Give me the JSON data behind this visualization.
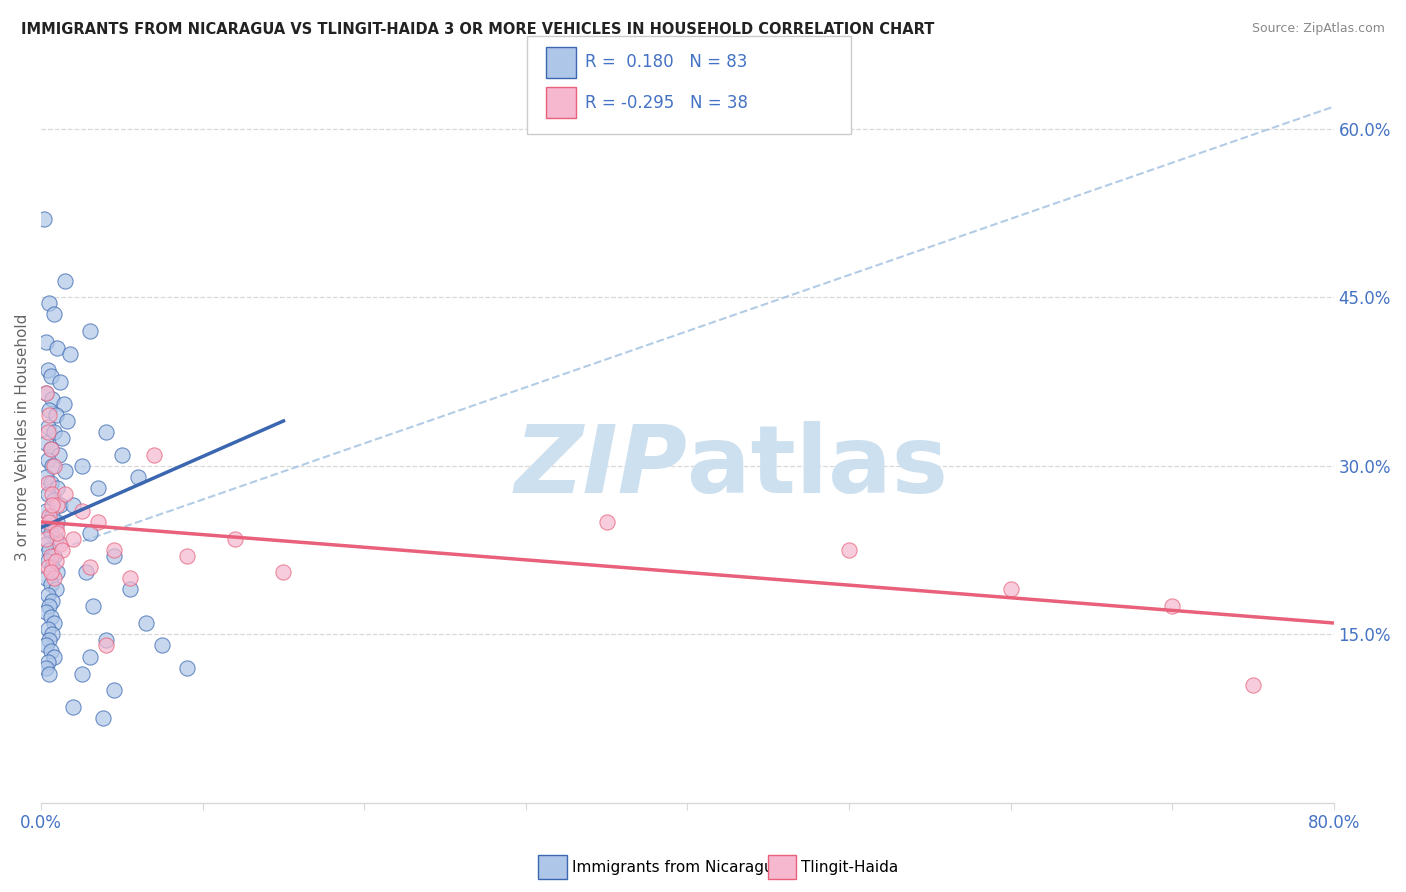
{
  "title": "IMMIGRANTS FROM NICARAGUA VS TLINGIT-HAIDA 3 OR MORE VEHICLES IN HOUSEHOLD CORRELATION CHART",
  "source": "Source: ZipAtlas.com",
  "ylabel": "3 or more Vehicles in Household",
  "legend1_label": "Immigrants from Nicaragua",
  "legend2_label": "Tlingit-Haida",
  "r1": 0.18,
  "n1": 83,
  "r2": -0.295,
  "n2": 38,
  "scatter_blue": [
    [
      0.2,
      52.0
    ],
    [
      1.5,
      46.5
    ],
    [
      3.0,
      42.0
    ],
    [
      0.5,
      44.5
    ],
    [
      0.8,
      43.5
    ],
    [
      0.3,
      41.0
    ],
    [
      1.0,
      40.5
    ],
    [
      1.8,
      40.0
    ],
    [
      0.4,
      38.5
    ],
    [
      0.6,
      38.0
    ],
    [
      1.2,
      37.5
    ],
    [
      0.3,
      36.5
    ],
    [
      0.7,
      36.0
    ],
    [
      1.4,
      35.5
    ],
    [
      0.5,
      35.0
    ],
    [
      0.9,
      34.5
    ],
    [
      1.6,
      34.0
    ],
    [
      0.4,
      33.5
    ],
    [
      0.8,
      33.0
    ],
    [
      1.3,
      32.5
    ],
    [
      0.3,
      32.0
    ],
    [
      0.6,
      31.5
    ],
    [
      1.1,
      31.0
    ],
    [
      0.4,
      30.5
    ],
    [
      0.7,
      30.0
    ],
    [
      1.5,
      29.5
    ],
    [
      0.3,
      29.0
    ],
    [
      0.6,
      28.5
    ],
    [
      1.0,
      28.0
    ],
    [
      0.4,
      27.5
    ],
    [
      0.8,
      27.0
    ],
    [
      1.2,
      26.5
    ],
    [
      0.3,
      26.0
    ],
    [
      0.7,
      25.5
    ],
    [
      1.0,
      25.0
    ],
    [
      0.4,
      24.5
    ],
    [
      0.6,
      24.0
    ],
    [
      0.9,
      23.5
    ],
    [
      0.3,
      23.0
    ],
    [
      0.5,
      22.5
    ],
    [
      0.8,
      22.0
    ],
    [
      0.4,
      21.5
    ],
    [
      0.7,
      21.0
    ],
    [
      1.0,
      20.5
    ],
    [
      0.3,
      20.0
    ],
    [
      0.6,
      19.5
    ],
    [
      0.9,
      19.0
    ],
    [
      0.4,
      18.5
    ],
    [
      0.7,
      18.0
    ],
    [
      0.5,
      17.5
    ],
    [
      0.3,
      17.0
    ],
    [
      0.6,
      16.5
    ],
    [
      0.8,
      16.0
    ],
    [
      0.4,
      15.5
    ],
    [
      0.7,
      15.0
    ],
    [
      0.5,
      14.5
    ],
    [
      0.3,
      14.0
    ],
    [
      0.6,
      13.5
    ],
    [
      0.8,
      13.0
    ],
    [
      0.4,
      12.5
    ],
    [
      0.3,
      12.0
    ],
    [
      0.5,
      11.5
    ],
    [
      2.5,
      30.0
    ],
    [
      3.5,
      28.0
    ],
    [
      2.0,
      26.5
    ],
    [
      4.0,
      33.0
    ],
    [
      5.0,
      31.0
    ],
    [
      6.0,
      29.0
    ],
    [
      3.0,
      24.0
    ],
    [
      4.5,
      22.0
    ],
    [
      2.8,
      20.5
    ],
    [
      5.5,
      19.0
    ],
    [
      3.2,
      17.5
    ],
    [
      6.5,
      16.0
    ],
    [
      4.0,
      14.5
    ],
    [
      3.0,
      13.0
    ],
    [
      2.5,
      11.5
    ],
    [
      4.5,
      10.0
    ],
    [
      2.0,
      8.5
    ],
    [
      3.8,
      7.5
    ],
    [
      7.5,
      14.0
    ],
    [
      9.0,
      12.0
    ]
  ],
  "scatter_pink": [
    [
      0.3,
      36.5
    ],
    [
      0.5,
      34.5
    ],
    [
      0.4,
      33.0
    ],
    [
      0.6,
      31.5
    ],
    [
      0.8,
      30.0
    ],
    [
      0.4,
      28.5
    ],
    [
      0.7,
      27.5
    ],
    [
      1.0,
      26.5
    ],
    [
      0.5,
      25.5
    ],
    [
      0.9,
      24.5
    ],
    [
      0.3,
      23.5
    ],
    [
      1.2,
      23.0
    ],
    [
      0.6,
      22.0
    ],
    [
      0.4,
      21.0
    ],
    [
      0.8,
      20.0
    ],
    [
      1.5,
      27.5
    ],
    [
      0.7,
      26.5
    ],
    [
      0.5,
      25.0
    ],
    [
      1.0,
      24.0
    ],
    [
      1.3,
      22.5
    ],
    [
      0.9,
      21.5
    ],
    [
      0.6,
      20.5
    ],
    [
      2.5,
      26.0
    ],
    [
      3.5,
      25.0
    ],
    [
      2.0,
      23.5
    ],
    [
      4.5,
      22.5
    ],
    [
      3.0,
      21.0
    ],
    [
      5.5,
      20.0
    ],
    [
      7.0,
      31.0
    ],
    [
      9.0,
      22.0
    ],
    [
      12.0,
      23.5
    ],
    [
      15.0,
      20.5
    ],
    [
      35.0,
      25.0
    ],
    [
      50.0,
      22.5
    ],
    [
      60.0,
      19.0
    ],
    [
      70.0,
      17.5
    ],
    [
      4.0,
      14.0
    ],
    [
      75.0,
      10.5
    ]
  ],
  "xlim": [
    0.0,
    80.0
  ],
  "ylim": [
    0.0,
    65.0
  ],
  "xtick_positions": [
    0,
    10,
    20,
    30,
    40,
    50,
    60,
    70,
    80
  ],
  "right_ytick_values": [
    15.0,
    30.0,
    45.0,
    60.0
  ],
  "right_ytick_labels": [
    "15.0%",
    "30.0%",
    "45.0%",
    "60.0%"
  ],
  "blue_scatter_color": "#aec6e8",
  "pink_scatter_color": "#f5b8cf",
  "blue_line_color": "#3a67b0",
  "pink_line_color": "#e8607a",
  "dashed_line_color": "#a0c0e0",
  "grid_color": "#d8d8d8",
  "watermark_color": "#cce0f0",
  "axis_label_color": "#4472c4",
  "title_color": "#222222",
  "source_color": "#888888",
  "background_color": "#ffffff"
}
